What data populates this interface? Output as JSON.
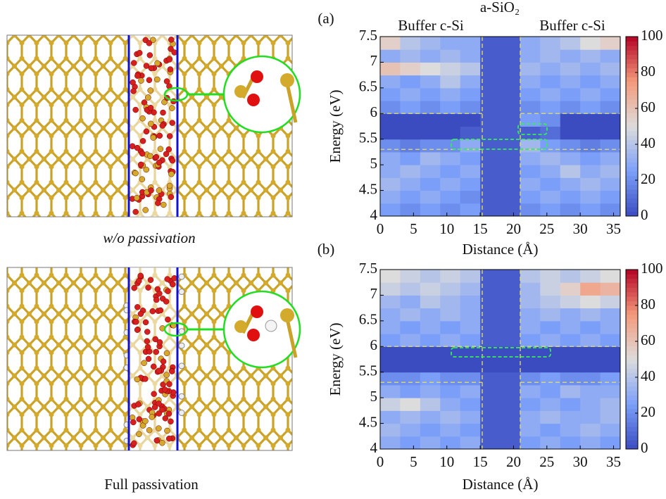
{
  "captions": {
    "top": "w/o passivation",
    "bottom": "Full passivation"
  },
  "labels": {
    "oxide": "a-SiO₂",
    "buffer_left": "Buffer c-Si",
    "buffer_right": "Buffer c-Si"
  },
  "chart_data": [
    {
      "type": "heatmap",
      "panel": "(a)",
      "xlabel": "Distance (Å)",
      "ylabel": "Energy (eV)",
      "xlim": [
        0,
        36
      ],
      "ylim": [
        4,
        7.5
      ],
      "xticks": [
        0,
        5,
        10,
        15,
        20,
        25,
        30,
        35
      ],
      "yticks": [
        4,
        4.5,
        5,
        5.5,
        6,
        6.5,
        7,
        7.5
      ],
      "x_edges": [
        0,
        3,
        6,
        9,
        12,
        15,
        18,
        21,
        24,
        27,
        30,
        33,
        36
      ],
      "y_edges": [
        4,
        4.25,
        4.5,
        4.75,
        5,
        5.25,
        5.5,
        5.75,
        6,
        6.25,
        6.5,
        6.75,
        7,
        7.25,
        7.5
      ],
      "values": [
        [
          25,
          20,
          25,
          20,
          25,
          5,
          5,
          20,
          25,
          20,
          25,
          20
        ],
        [
          30,
          25,
          30,
          25,
          20,
          5,
          5,
          25,
          30,
          25,
          30,
          25
        ],
        [
          35,
          30,
          25,
          30,
          25,
          5,
          5,
          30,
          25,
          30,
          35,
          30
        ],
        [
          30,
          35,
          30,
          25,
          30,
          5,
          5,
          25,
          30,
          40,
          30,
          35
        ],
        [
          30,
          25,
          35,
          30,
          25,
          5,
          5,
          30,
          35,
          30,
          25,
          30
        ],
        [
          20,
          15,
          20,
          20,
          30,
          5,
          5,
          35,
          25,
          20,
          15,
          20
        ],
        [
          0,
          0,
          0,
          0,
          5,
          5,
          5,
          5,
          10,
          0,
          0,
          0
        ],
        [
          0,
          0,
          0,
          0,
          0,
          5,
          5,
          25,
          20,
          0,
          0,
          0
        ],
        [
          20,
          25,
          20,
          25,
          20,
          5,
          5,
          20,
          25,
          20,
          25,
          20
        ],
        [
          25,
          30,
          25,
          30,
          25,
          5,
          5,
          25,
          30,
          25,
          30,
          25
        ],
        [
          30,
          25,
          30,
          40,
          30,
          5,
          5,
          30,
          25,
          30,
          25,
          30
        ],
        [
          60,
          55,
          50,
          45,
          40,
          5,
          5,
          35,
          30,
          35,
          30,
          35
        ],
        [
          30,
          35,
          30,
          35,
          30,
          5,
          5,
          30,
          35,
          30,
          35,
          30
        ],
        [
          55,
          40,
          35,
          30,
          30,
          5,
          5,
          30,
          35,
          40,
          50,
          55
        ]
      ],
      "colormap": [
        "#3b4cc0",
        "#7b9ff9",
        "#dddcdc",
        "#f49a7b",
        "#b40426"
      ],
      "clim": [
        0,
        100
      ],
      "cticks": [
        0,
        20,
        40,
        60,
        80,
        100
      ]
    },
    {
      "type": "heatmap",
      "panel": "(b)",
      "xlabel": "Distance (Å)",
      "ylabel": "Energy (eV)",
      "xlim": [
        0,
        36
      ],
      "ylim": [
        4,
        7.5
      ],
      "xticks": [
        0,
        5,
        10,
        15,
        20,
        25,
        30,
        35
      ],
      "yticks": [
        4,
        4.5,
        5,
        5.5,
        6,
        6.5,
        7,
        7.5
      ],
      "x_edges": [
        0,
        3,
        6,
        9,
        12,
        15,
        18,
        21,
        24,
        27,
        30,
        33,
        36
      ],
      "y_edges": [
        4,
        4.25,
        4.5,
        4.75,
        5,
        5.25,
        5.5,
        5.75,
        6,
        6.25,
        6.5,
        6.75,
        7,
        7.25,
        7.5
      ],
      "values": [
        [
          30,
          25,
          30,
          25,
          30,
          5,
          5,
          25,
          30,
          25,
          30,
          25
        ],
        [
          35,
          30,
          25,
          30,
          25,
          5,
          5,
          30,
          25,
          30,
          35,
          30
        ],
        [
          30,
          35,
          30,
          35,
          30,
          5,
          5,
          30,
          35,
          30,
          30,
          35
        ],
        [
          45,
          50,
          40,
          30,
          25,
          5,
          5,
          25,
          30,
          25,
          30,
          35
        ],
        [
          30,
          25,
          30,
          25,
          30,
          5,
          5,
          30,
          25,
          35,
          30,
          30
        ],
        [
          20,
          20,
          25,
          20,
          20,
          5,
          5,
          20,
          25,
          20,
          20,
          25
        ],
        [
          0,
          0,
          0,
          0,
          0,
          0,
          0,
          0,
          0,
          0,
          0,
          0
        ],
        [
          0,
          0,
          0,
          0,
          0,
          0,
          0,
          0,
          0,
          0,
          0,
          0
        ],
        [
          25,
          30,
          25,
          30,
          25,
          5,
          5,
          25,
          30,
          25,
          30,
          25
        ],
        [
          30,
          25,
          30,
          25,
          30,
          5,
          5,
          30,
          25,
          30,
          25,
          30
        ],
        [
          30,
          35,
          30,
          35,
          30,
          5,
          5,
          30,
          35,
          30,
          35,
          30
        ],
        [
          35,
          30,
          40,
          35,
          30,
          5,
          5,
          35,
          40,
          45,
          50,
          45
        ],
        [
          45,
          40,
          45,
          40,
          35,
          5,
          5,
          35,
          45,
          55,
          70,
          65
        ],
        [
          50,
          45,
          40,
          45,
          40,
          5,
          5,
          40,
          45,
          40,
          45,
          50
        ]
      ],
      "colormap": [
        "#3b4cc0",
        "#7b9ff9",
        "#dddcdc",
        "#f49a7b",
        "#b40426"
      ],
      "clim": [
        0,
        100
      ],
      "cticks": [
        0,
        20,
        40,
        60,
        80,
        100
      ]
    }
  ]
}
